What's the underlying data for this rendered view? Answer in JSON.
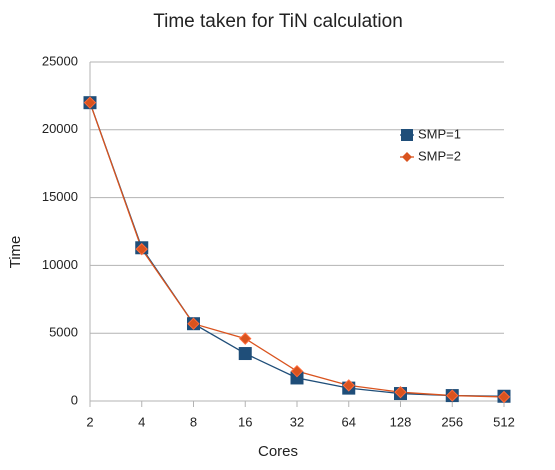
{
  "chart_data": {
    "type": "line",
    "title": "Time taken for TiN calculation",
    "x_label": "Cores",
    "y_label": "Time",
    "categories": [
      "2",
      "4",
      "8",
      "16",
      "32",
      "64",
      "128",
      "256",
      "512"
    ],
    "series": [
      {
        "name": "SMP=1",
        "color": "#1f4e79",
        "values": [
          22000,
          11300,
          5700,
          3500,
          1700,
          950,
          550,
          400,
          350
        ]
      },
      {
        "name": "SMP=2",
        "color": "#d9531e",
        "values": [
          22000,
          11200,
          5700,
          4600,
          2200,
          1150,
          650,
          400,
          300
        ]
      }
    ],
    "ylim": [
      0,
      25000
    ],
    "yticks": [
      0,
      5000,
      10000,
      15000,
      20000,
      25000
    ],
    "grid": true,
    "legend": "upper right"
  }
}
